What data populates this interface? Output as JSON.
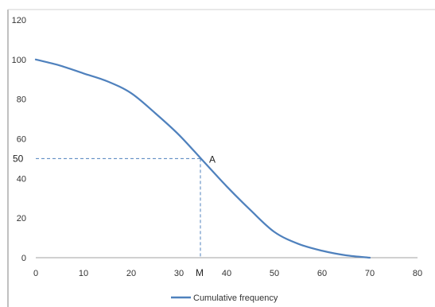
{
  "chart_data": {
    "type": "line",
    "title": "",
    "xlabel": "",
    "ylabel": "",
    "xlim": [
      0,
      80
    ],
    "ylim": [
      0,
      120
    ],
    "x_ticks": [
      0,
      10,
      20,
      30,
      40,
      50,
      60,
      70,
      80
    ],
    "y_ticks": [
      0,
      20,
      40,
      60,
      80,
      100,
      120
    ],
    "grid": false,
    "legend_position": "bottom",
    "series": [
      {
        "name": "Cumulative frequency",
        "color": "#4F81BD",
        "x": [
          0,
          5,
          10,
          15,
          20,
          25,
          30,
          35,
          40,
          45,
          50,
          55,
          60,
          65,
          70
        ],
        "y": [
          100,
          97,
          93,
          89,
          83,
          73,
          62,
          49,
          36,
          24,
          13,
          7,
          3.5,
          1.2,
          0
        ]
      }
    ],
    "annotations": {
      "point": {
        "label": "A",
        "x": 34.5,
        "y": 50
      },
      "x_marker_label": "M",
      "y_marker_label": "50",
      "line_color": "#4F81BD"
    }
  }
}
